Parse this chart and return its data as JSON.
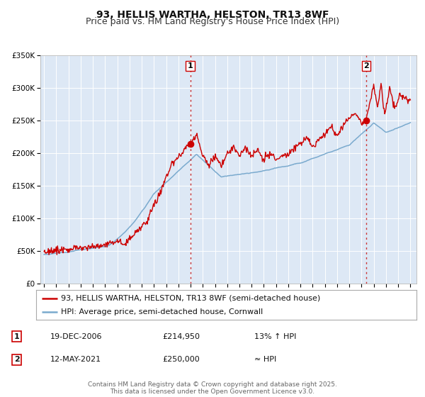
{
  "title": "93, HELLIS WARTHA, HELSTON, TR13 8WF",
  "subtitle": "Price paid vs. HM Land Registry's House Price Index (HPI)",
  "ylim": [
    0,
    350000
  ],
  "yticks": [
    0,
    50000,
    100000,
    150000,
    200000,
    250000,
    300000,
    350000
  ],
  "ytick_labels": [
    "£0",
    "£50K",
    "£100K",
    "£150K",
    "£200K",
    "£250K",
    "£300K",
    "£350K"
  ],
  "xlim_start": 1994.7,
  "xlim_end": 2025.5,
  "xtick_years": [
    1995,
    1996,
    1997,
    1998,
    1999,
    2000,
    2001,
    2002,
    2003,
    2004,
    2005,
    2006,
    2007,
    2008,
    2009,
    2010,
    2011,
    2012,
    2013,
    2014,
    2015,
    2016,
    2017,
    2018,
    2019,
    2020,
    2021,
    2022,
    2023,
    2024,
    2025
  ],
  "background_color": "#ffffff",
  "plot_bg_color": "#dde8f5",
  "grid_color": "#ffffff",
  "red_line_color": "#cc0000",
  "blue_line_color": "#7aaace",
  "sale1_x": 2006.97,
  "sale1_y": 214950,
  "sale1_label": "1",
  "sale2_x": 2021.37,
  "sale2_y": 250000,
  "sale2_label": "2",
  "vline_color": "#cc3333",
  "vline_style": ":",
  "legend_label_red": "93, HELLIS WARTHA, HELSTON, TR13 8WF (semi-detached house)",
  "legend_label_blue": "HPI: Average price, semi-detached house, Cornwall",
  "table_row1": [
    "1",
    "19-DEC-2006",
    "£214,950",
    "13% ↑ HPI"
  ],
  "table_row2": [
    "2",
    "12-MAY-2021",
    "£250,000",
    "≈ HPI"
  ],
  "footnote": "Contains HM Land Registry data © Crown copyright and database right 2025.\nThis data is licensed under the Open Government Licence v3.0.",
  "title_fontsize": 10,
  "subtitle_fontsize": 9,
  "tick_fontsize": 7.5,
  "legend_fontsize": 8,
  "table_fontsize": 8
}
